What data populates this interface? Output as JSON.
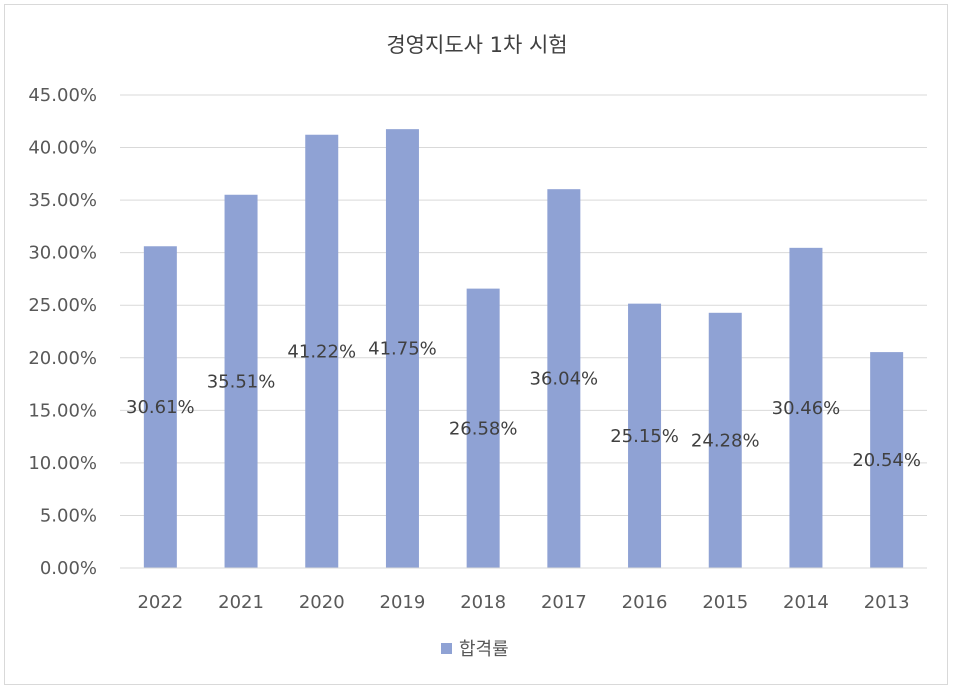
{
  "chart_data": {
    "type": "bar",
    "title": "경영지도사 1차 시험",
    "categories": [
      "2022",
      "2021",
      "2020",
      "2019",
      "2018",
      "2017",
      "2016",
      "2015",
      "2014",
      "2013"
    ],
    "series": [
      {
        "name": "합격률",
        "color": "#8fa2d4",
        "values": [
          30.61,
          35.51,
          41.22,
          41.75,
          26.58,
          36.04,
          25.15,
          24.28,
          30.46,
          20.54
        ],
        "labels": [
          "30.61%",
          "35.51%",
          "41.22%",
          "41.75%",
          "26.58%",
          "36.04%",
          "25.15%",
          "24.28%",
          "30.46%",
          "20.54%"
        ]
      }
    ],
    "ylim": [
      0,
      45
    ],
    "yticks": [
      0,
      5,
      10,
      15,
      20,
      25,
      30,
      35,
      40,
      45
    ],
    "ytick_labels": [
      "0.00%",
      "5.00%",
      "10.00%",
      "15.00%",
      "20.00%",
      "25.00%",
      "30.00%",
      "35.00%",
      "40.00%",
      "45.00%"
    ],
    "grid": true,
    "legend_position": "bottom"
  }
}
